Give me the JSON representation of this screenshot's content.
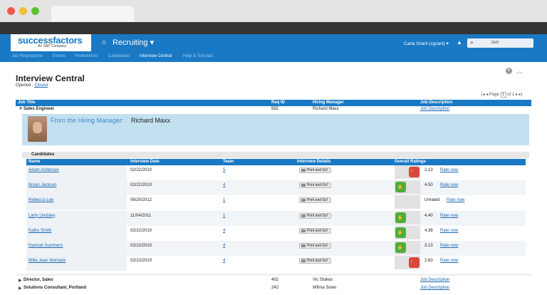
{
  "header": {
    "logo_text": "successfactors",
    "logo_sub": "An SAP Company",
    "module": "Recruiting ▾",
    "user": "Carla Grant (cgrant) ▾",
    "search_placeholder": "Jam"
  },
  "sub_nav": [
    "Job Requisitions",
    "Events",
    "Preferences",
    "Candidates",
    "Interview Central",
    "Help & Tutorials"
  ],
  "page": {
    "title": "Interview Central",
    "status_opened": "Opened",
    "status_sep": " . ",
    "status_closed": "Closed",
    "pager": "|◂ ◂ Page",
    "page_num": "1",
    "page_of": "of 1 ▸ ▸|"
  },
  "req_columns": {
    "job_title": "Job Title",
    "req_id": "Req ID",
    "hiring_manager": "Hiring Manager",
    "job_description": "Job Description"
  },
  "requisitions": [
    {
      "title": "Sales Engineer",
      "req_id": "582",
      "manager": "Richard Maxx",
      "desc": "Job Description"
    },
    {
      "title": "Director, Sales",
      "req_id": "402",
      "manager": "Vic Stokes",
      "desc": "Job Description"
    },
    {
      "title": "Solutions Consultant, Portland",
      "req_id": "242",
      "manager": "Wilma Sown",
      "desc": "Job Description"
    }
  ],
  "hiring_manager_panel": {
    "label": "From the Hiring Manager:",
    "name": "Richard Maxx"
  },
  "candidates_label": "Candidates",
  "cand_columns": {
    "name": "Name",
    "interview_date": "Interview Date",
    "team": "Team",
    "details": "Interview Details",
    "ratings": "Overall Ratings"
  },
  "print_label": "Print and Go!",
  "rate_label": "Rate now",
  "candidates": [
    {
      "name": "Adam Anderson",
      "date": "02/22/2010",
      "team": "5",
      "score": "2.13",
      "rating": "down"
    },
    {
      "name": "Bryan Jackson",
      "date": "02/22/2010",
      "team": "4",
      "score": "4.50",
      "rating": "up"
    },
    {
      "name": "Rebecca Lee",
      "date": "06/20/2012",
      "team": "1",
      "score": "Unrated",
      "rating": "none"
    },
    {
      "name": "Larry Lindsley",
      "date": "11/04/2011",
      "team": "1",
      "score": "4.40",
      "rating": "up"
    },
    {
      "name": "Kathy Smith",
      "date": "02/22/2010",
      "team": "4",
      "score": "4.38",
      "rating": "up"
    },
    {
      "name": "Hannah Summers",
      "date": "02/22/2010",
      "team": "4",
      "score": "3.13",
      "rating": "up"
    },
    {
      "name": "Billie Jean Womack",
      "date": "02/22/2010",
      "team": "4",
      "score": "2.63",
      "rating": "down"
    }
  ],
  "colors": {
    "brand": "#1a79c4",
    "thumb_up": "#4cae3f",
    "thumb_down": "#d9483b",
    "link": "#1a66b0"
  }
}
